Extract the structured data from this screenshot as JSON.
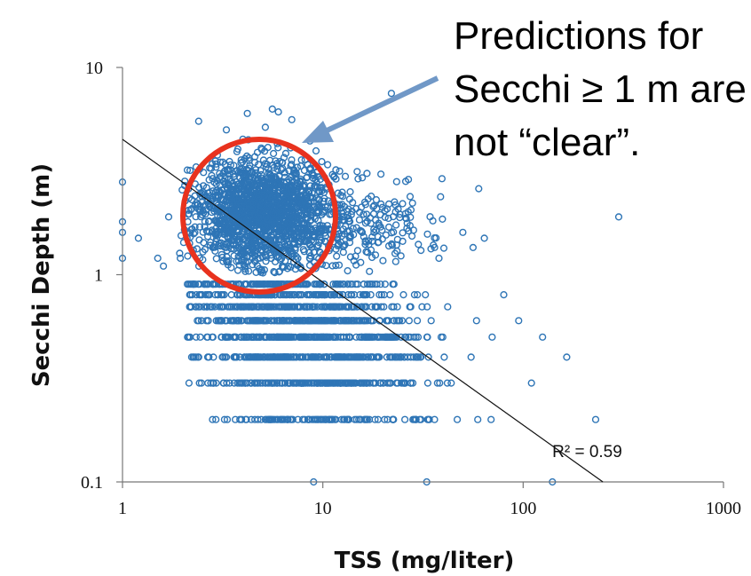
{
  "chart_data": {
    "type": "scatter",
    "title": "",
    "xlabel": "TSS (mg/liter)",
    "ylabel": "Secchi Depth (m)",
    "xscale": "log",
    "yscale": "log",
    "xlim": [
      1,
      1000
    ],
    "ylim": [
      0.1,
      10
    ],
    "x_ticks": [
      "1",
      "10",
      "100",
      "1000"
    ],
    "y_ticks": [
      "0.1",
      "1",
      "10"
    ],
    "grid": false,
    "marker_color": "#2e75b6",
    "trendline": {
      "label": "R² = 0.59",
      "points": [
        [
          1,
          4.5
        ],
        [
          250,
          0.1
        ]
      ]
    },
    "points": [
      [
        1.0,
        2.8
      ],
      [
        1.0,
        1.8
      ],
      [
        1.0,
        1.6
      ],
      [
        1.0,
        1.2
      ],
      [
        1.2,
        1.5
      ],
      [
        1.5,
        1.2
      ],
      [
        1.6,
        1.1
      ],
      [
        1.7,
        1.9
      ],
      [
        2.1,
        1.5
      ],
      [
        2.3,
        2.4
      ],
      [
        2.3,
        1.7
      ],
      [
        2.4,
        5.5
      ],
      [
        2.4,
        0.4
      ],
      [
        2.7,
        0.4
      ],
      [
        2.9,
        1.3
      ],
      [
        3.3,
        5.0
      ],
      [
        3.8,
        2.2
      ],
      [
        4.0,
        1.4
      ],
      [
        4.2,
        6.0
      ],
      [
        4.6,
        3.1
      ],
      [
        5.2,
        1.9
      ],
      [
        5.6,
        6.3
      ],
      [
        6.0,
        6.1
      ],
      [
        6.3,
        0.4
      ],
      [
        7.0,
        5.6
      ],
      [
        7.5,
        1.2
      ],
      [
        8.4,
        3.4
      ],
      [
        9.0,
        0.1
      ],
      [
        11.0,
        0.2
      ],
      [
        12.5,
        2.5
      ],
      [
        14.0,
        0.6
      ],
      [
        15.0,
        2.9
      ],
      [
        18.0,
        1.6
      ],
      [
        20.0,
        0.3
      ],
      [
        22.0,
        7.5
      ],
      [
        25.0,
        2.2
      ],
      [
        26.0,
        0.5
      ],
      [
        30.0,
        1.4
      ],
      [
        33.0,
        0.1
      ],
      [
        38.0,
        1.2
      ],
      [
        42.0,
        0.7
      ],
      [
        50.0,
        1.6
      ],
      [
        55.0,
        0.4
      ],
      [
        60.0,
        2.6
      ],
      [
        64.0,
        1.5
      ],
      [
        70.0,
        0.5
      ],
      [
        80.0,
        0.8
      ],
      [
        95.0,
        0.6
      ],
      [
        110.0,
        0.3
      ],
      [
        125.0,
        0.5
      ],
      [
        140.0,
        0.1
      ],
      [
        165.0,
        0.4
      ],
      [
        230.0,
        0.2
      ],
      [
        300.0,
        1.9
      ]
    ]
  },
  "annotation": {
    "lines": [
      "Predictions for",
      "Secchi ≥ 1 m are",
      "not “clear”."
    ],
    "circle_color": "#e8321e",
    "arrow_color": "#7098c7"
  }
}
